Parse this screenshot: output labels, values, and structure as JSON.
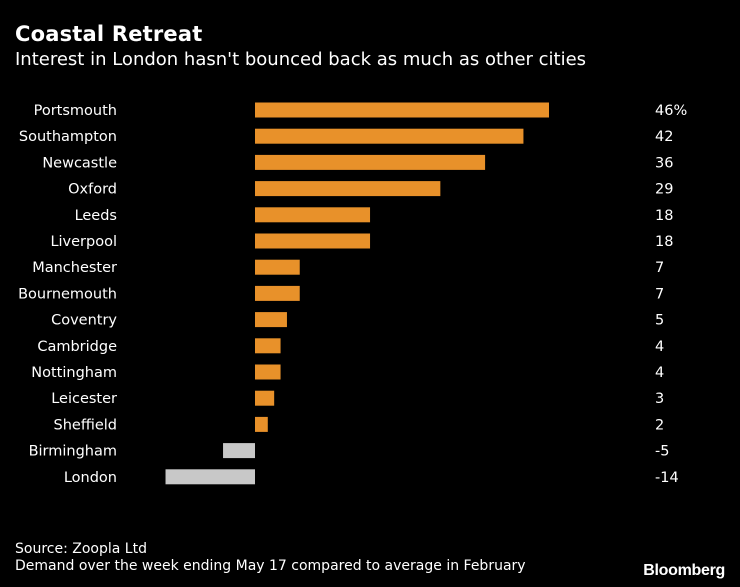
{
  "chart_data": {
    "type": "bar",
    "orientation": "horizontal",
    "title": "Coastal Retreat",
    "subtitle": "Interest in London hasn't bounced back as much as other cities",
    "categories": [
      "Portsmouth",
      "Southampton",
      "Newcastle",
      "Oxford",
      "Leeds",
      "Liverpool",
      "Manchester",
      "Bournemouth",
      "Coventry",
      "Cambridge",
      "Nottingham",
      "Leicester",
      "Sheffield",
      "Birmingham",
      "London"
    ],
    "values": [
      46,
      42,
      36,
      29,
      18,
      18,
      7,
      7,
      5,
      4,
      4,
      3,
      2,
      -5,
      -14
    ],
    "value_labels": [
      "46%",
      "42",
      "36",
      "29",
      "18",
      "18",
      "7",
      "7",
      "5",
      "4",
      "4",
      "3",
      "2",
      "-5",
      "-14"
    ],
    "xlim": [
      -14,
      46
    ],
    "grid": false,
    "legend": "none",
    "positive_color": "#e8912a",
    "negative_color": "#c8c8c8"
  },
  "footer": {
    "source": "Source: Zoopla Ltd",
    "note": "Demand over the week ending May 17 compared to average in February"
  },
  "brand": {
    "logo": "Bloomberg"
  }
}
